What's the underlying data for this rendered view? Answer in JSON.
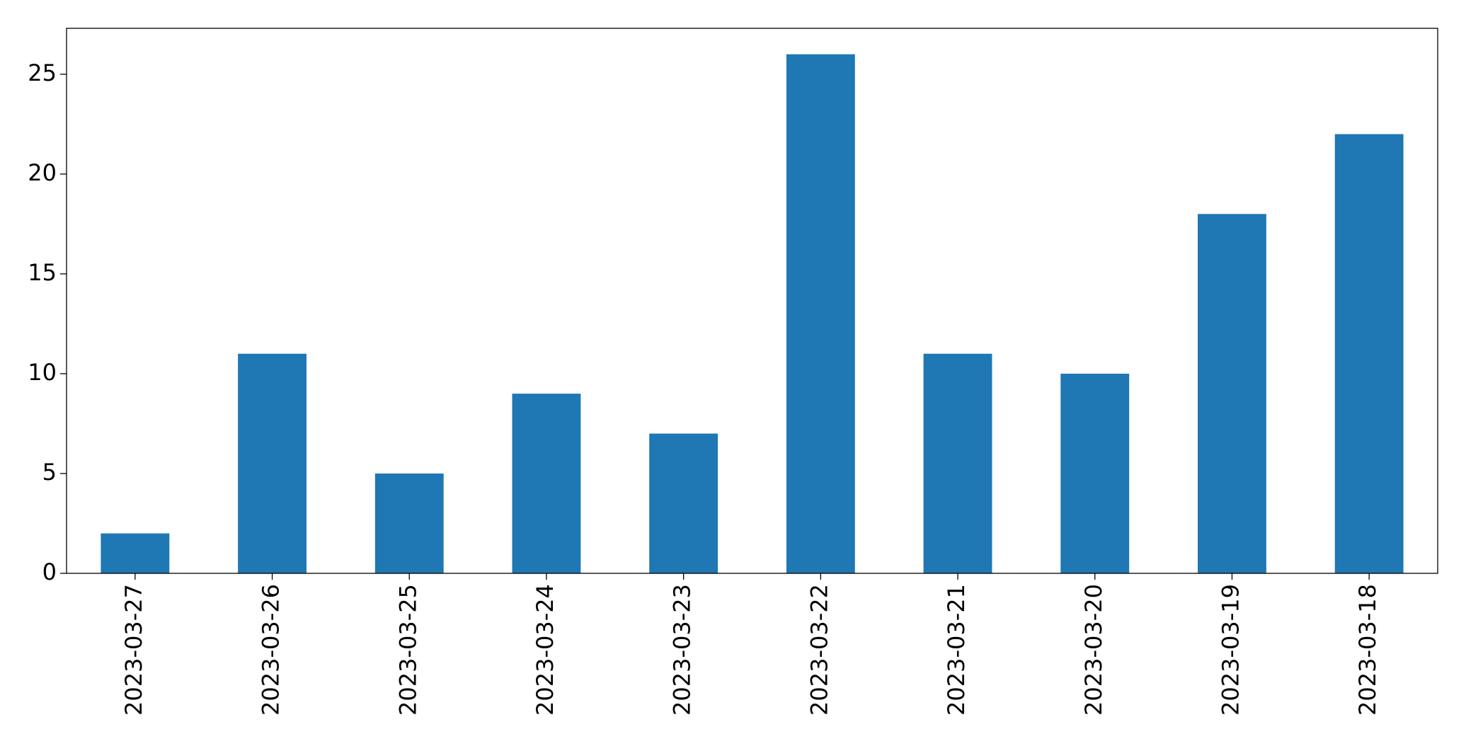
{
  "chart_data": {
    "type": "bar",
    "categories": [
      "2023-03-27",
      "2023-03-26",
      "2023-03-25",
      "2023-03-24",
      "2023-03-23",
      "2023-03-22",
      "2023-03-21",
      "2023-03-20",
      "2023-03-19",
      "2023-03-18"
    ],
    "values": [
      2,
      11,
      5,
      9,
      7,
      26,
      11,
      10,
      18,
      22
    ],
    "color": "#1f77b4",
    "ylim": [
      0,
      27.3
    ],
    "yticks": [
      0,
      5,
      10,
      15,
      20,
      25
    ],
    "grid": false
  }
}
